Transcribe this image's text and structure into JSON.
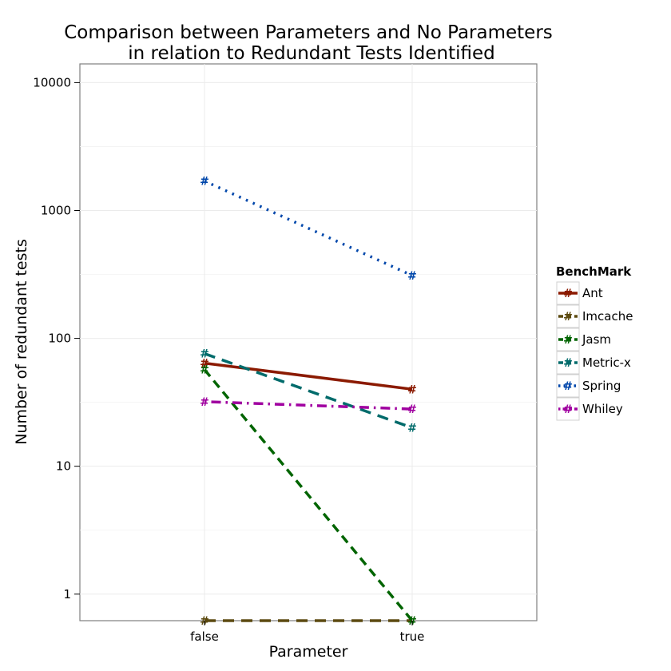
{
  "chart_data": {
    "type": "line",
    "title_lines": [
      "Comparison between Parameters and No Parameters",
      "in relation to Redundant Tests Identified"
    ],
    "xlabel": "Parameter",
    "ylabel": "Number of redundant tests",
    "categories": [
      "false",
      "true"
    ],
    "y_scale": "log10",
    "ylim": [
      0.62,
      14000
    ],
    "y_ticks": [
      1,
      10,
      100,
      1000,
      10000
    ],
    "y_tick_labels": [
      "1",
      "10",
      "100",
      "1000",
      "10000"
    ],
    "grid": true,
    "legend": {
      "title": "BenchMark",
      "position": "right"
    },
    "marker_symbol": "#",
    "series": [
      {
        "name": "Ant",
        "values": [
          64,
          40
        ],
        "color": "#8b1a00",
        "dash": "solid"
      },
      {
        "name": "Imcache",
        "values": [
          0.62,
          0.62
        ],
        "color": "#5c4a10",
        "dash": "longdash"
      },
      {
        "name": "Jasm",
        "values": [
          57,
          0.62
        ],
        "color": "#006400",
        "dash": "dashed"
      },
      {
        "name": "Metric-x",
        "values": [
          76,
          20
        ],
        "color": "#006b6b",
        "dash": "longdash"
      },
      {
        "name": "Spring",
        "values": [
          1700,
          310
        ],
        "color": "#0047ab",
        "dash": "dotted"
      },
      {
        "name": "Whiley",
        "values": [
          32,
          28
        ],
        "color": "#a000a0",
        "dash": "dotdash"
      }
    ]
  }
}
